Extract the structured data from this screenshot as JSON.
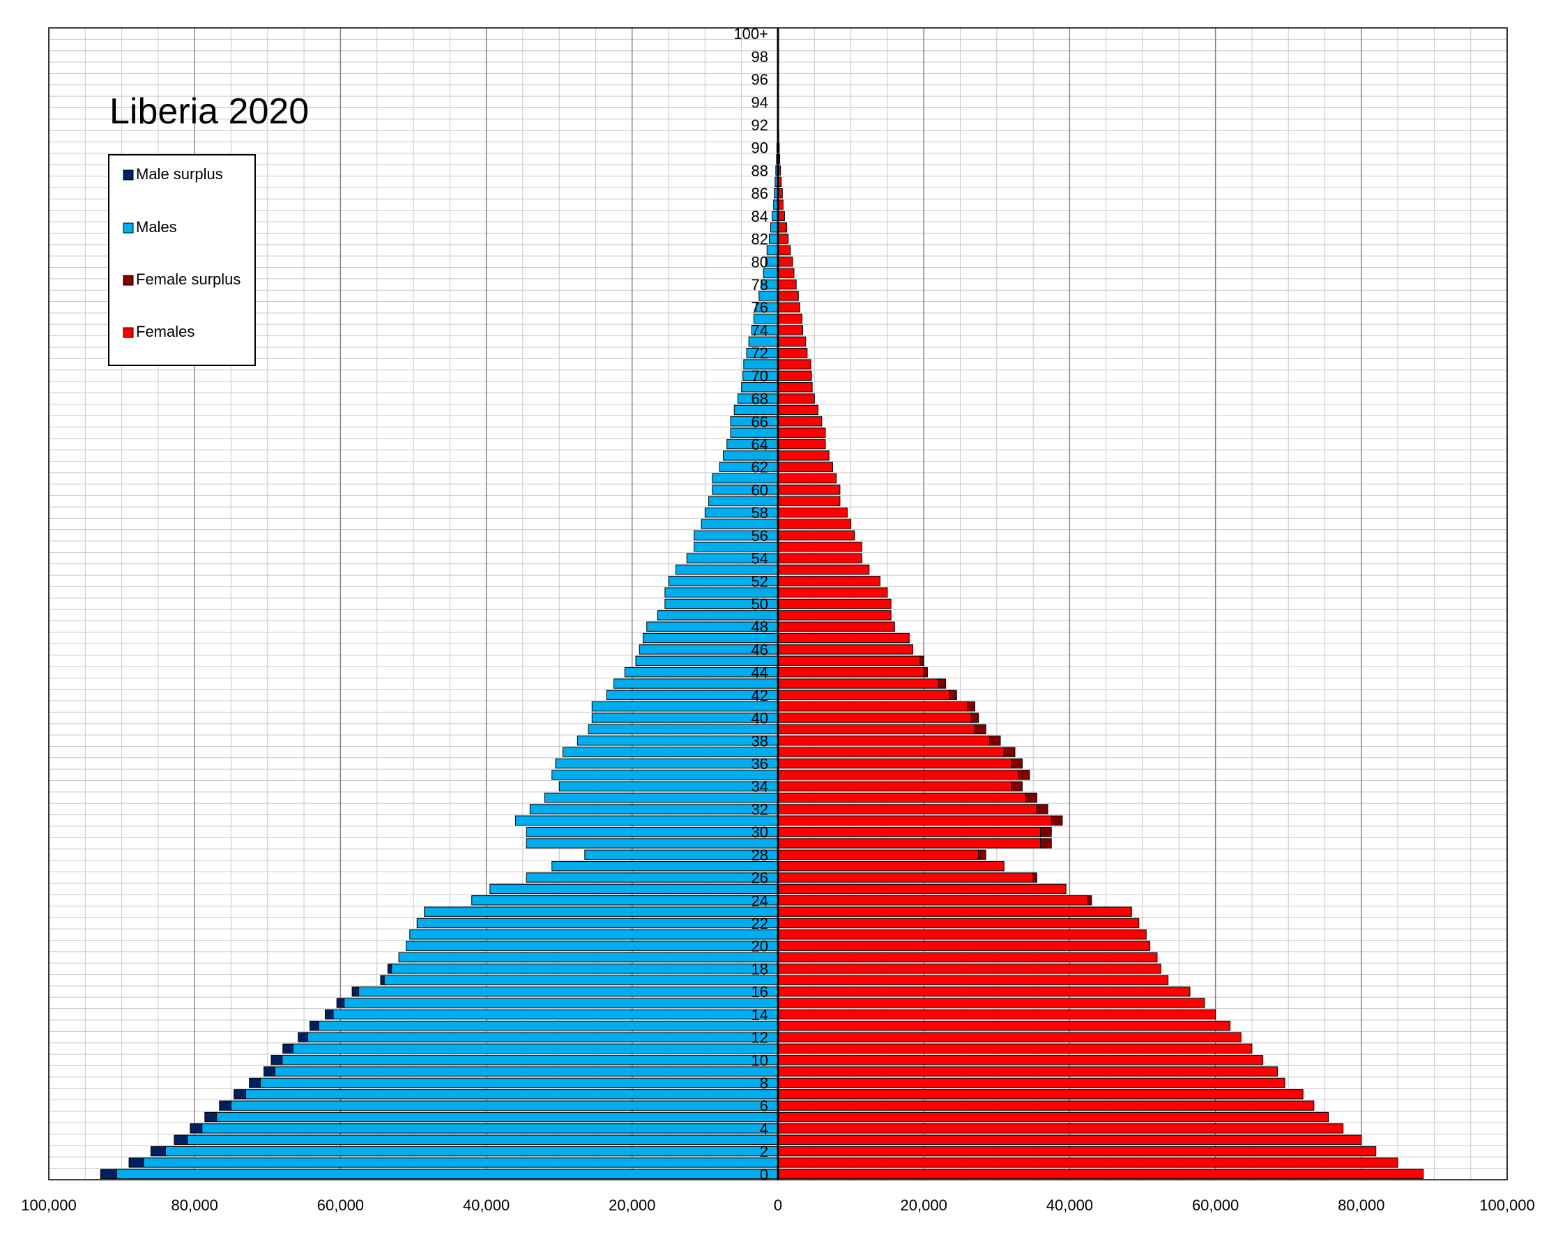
{
  "chart_data": {
    "type": "bar",
    "title": "Liberia 2020",
    "orientation": "horizontal-population-pyramid",
    "xlim": [
      -100000,
      100000
    ],
    "x_ticks": [
      -100000,
      -80000,
      -60000,
      -40000,
      -20000,
      0,
      20000,
      40000,
      60000,
      80000,
      100000
    ],
    "x_tick_labels": [
      "100,000",
      "80,000",
      "60,000",
      "40,000",
      "20,000",
      "0",
      "20,000",
      "40,000",
      "60,000",
      "80,000",
      "100,000"
    ],
    "age_groups": [
      "0",
      "1",
      "2",
      "3",
      "4",
      "5",
      "6",
      "7",
      "8",
      "9",
      "10",
      "11",
      "12",
      "13",
      "14",
      "15",
      "16",
      "17",
      "18",
      "19",
      "20",
      "21",
      "22",
      "23",
      "24",
      "25",
      "26",
      "27",
      "28",
      "29",
      "30",
      "31",
      "32",
      "33",
      "34",
      "35",
      "36",
      "37",
      "38",
      "39",
      "40",
      "41",
      "42",
      "43",
      "44",
      "45",
      "46",
      "47",
      "48",
      "49",
      "50",
      "51",
      "52",
      "53",
      "54",
      "55",
      "56",
      "57",
      "58",
      "59",
      "60",
      "61",
      "62",
      "63",
      "64",
      "65",
      "66",
      "67",
      "68",
      "69",
      "70",
      "71",
      "72",
      "73",
      "74",
      "75",
      "76",
      "77",
      "78",
      "79",
      "80",
      "81",
      "82",
      "83",
      "84",
      "85",
      "86",
      "87",
      "88",
      "89",
      "90",
      "91",
      "92",
      "93",
      "94",
      "95",
      "96",
      "97",
      "98",
      "99",
      "100+"
    ],
    "age_tick_labels": [
      "0",
      "2",
      "4",
      "6",
      "8",
      "10",
      "12",
      "14",
      "16",
      "18",
      "20",
      "22",
      "24",
      "26",
      "28",
      "30",
      "32",
      "34",
      "36",
      "38",
      "40",
      "42",
      "44",
      "46",
      "48",
      "50",
      "52",
      "54",
      "56",
      "58",
      "60",
      "62",
      "64",
      "66",
      "68",
      "70",
      "72",
      "74",
      "76",
      "78",
      "80",
      "82",
      "84",
      "86",
      "88",
      "90",
      "92",
      "94",
      "96",
      "98",
      "100+"
    ],
    "series": [
      {
        "name": "Males",
        "color": "#00aeef",
        "values": [
          90700,
          87000,
          84000,
          81000,
          79000,
          77000,
          75000,
          73000,
          71000,
          69000,
          68000,
          66500,
          64500,
          63000,
          61000,
          59500,
          57500,
          54000,
          53000,
          52000,
          51000,
          50500,
          49500,
          48500,
          42000,
          39500,
          34500,
          31000,
          26500,
          34500,
          34500,
          36000,
          34000,
          32000,
          30000,
          31000,
          30500,
          29500,
          27500,
          26000,
          25500,
          25500,
          23500,
          22500,
          21000,
          19500,
          19000,
          18500,
          18000,
          16500,
          15500,
          15500,
          15000,
          14000,
          12500,
          11500,
          11500,
          10500,
          10000,
          9500,
          9000,
          9000,
          8000,
          7500,
          7000,
          6500,
          6500,
          6000,
          5500,
          5000,
          4800,
          4700,
          4300,
          4000,
          3600,
          3300,
          3000,
          2600,
          2300,
          2000,
          1700,
          1500,
          1200,
          1000,
          800,
          600,
          500,
          400,
          300,
          200,
          150,
          100,
          70,
          50,
          30,
          20,
          10,
          8,
          5,
          3,
          2
        ]
      },
      {
        "name": "Females",
        "color": "#ff0000",
        "values": [
          88500,
          85000,
          82000,
          80000,
          77500,
          75500,
          73500,
          72000,
          69500,
          68500,
          66500,
          65000,
          63500,
          62000,
          60000,
          58500,
          56500,
          53500,
          52500,
          52000,
          51000,
          50500,
          49500,
          48500,
          42500,
          39500,
          35000,
          31000,
          27500,
          36000,
          36000,
          37500,
          35500,
          34000,
          32000,
          33000,
          32000,
          31000,
          29000,
          27000,
          26500,
          26000,
          23500,
          22000,
          20000,
          19500,
          18500,
          18000,
          16000,
          15500,
          15500,
          15000,
          14000,
          12500,
          11500,
          11500,
          10500,
          10000,
          9500,
          8500,
          8500,
          8000,
          7500,
          7000,
          6500,
          6500,
          6000,
          5500,
          5000,
          4700,
          4600,
          4500,
          4000,
          3800,
          3400,
          3300,
          3000,
          2800,
          2500,
          2200,
          2000,
          1700,
          1400,
          1200,
          900,
          700,
          600,
          450,
          350,
          250,
          180,
          120,
          80,
          50,
          30,
          20,
          10,
          8,
          5,
          3,
          2
        ]
      },
      {
        "name": "Male surplus",
        "color": "#002060",
        "values": [
          2200,
          2000,
          2000,
          1800,
          1600,
          1600,
          1600,
          1600,
          1500,
          1500,
          1500,
          1400,
          1300,
          1200,
          1100,
          1000,
          900,
          500,
          500,
          0,
          0,
          0,
          0,
          0,
          0,
          0,
          0,
          0,
          0,
          0,
          0,
          0,
          0,
          0,
          0,
          0,
          0,
          0,
          0,
          0,
          0,
          0,
          0,
          0,
          0,
          0,
          0,
          0,
          0,
          0,
          0,
          0,
          0,
          0,
          0,
          0,
          0,
          0,
          0,
          0,
          0,
          0,
          0,
          0,
          0,
          0,
          0,
          0,
          0,
          0,
          0,
          0,
          0,
          0,
          0,
          0,
          0,
          0,
          0,
          0,
          0,
          0,
          0,
          0,
          0,
          0,
          0,
          0,
          0,
          0,
          0,
          0,
          0,
          0,
          0,
          0,
          0,
          0,
          0,
          0,
          0
        ]
      },
      {
        "name": "Female surplus",
        "color": "#800000",
        "values": [
          0,
          0,
          0,
          0,
          0,
          0,
          0,
          0,
          0,
          0,
          0,
          0,
          0,
          0,
          0,
          0,
          0,
          0,
          0,
          0,
          0,
          0,
          0,
          0,
          500,
          0,
          500,
          0,
          1000,
          1500,
          1500,
          1500,
          1500,
          1500,
          1500,
          1500,
          1500,
          1500,
          1500,
          1500,
          1000,
          1000,
          1000,
          1000,
          500,
          500,
          0,
          0,
          0,
          0,
          0,
          0,
          0,
          0,
          0,
          0,
          0,
          0,
          0,
          0,
          0,
          0,
          0,
          0,
          0,
          0,
          0,
          0,
          0,
          0,
          0,
          0,
          0,
          0,
          0,
          0,
          0,
          0,
          0,
          0,
          0,
          0,
          0,
          0,
          0,
          0,
          0,
          0,
          0,
          0,
          0,
          0,
          0,
          0,
          0,
          0,
          0,
          0,
          0,
          0,
          0
        ]
      }
    ],
    "legend": {
      "placement": "top-left",
      "entries": [
        {
          "label": "Male surplus",
          "color": "#002060"
        },
        {
          "label": "Males",
          "color": "#00aeef"
        },
        {
          "label": "Female surplus",
          "color": "#800000"
        },
        {
          "label": "Females",
          "color": "#ff0000"
        }
      ]
    },
    "grid": true
  }
}
